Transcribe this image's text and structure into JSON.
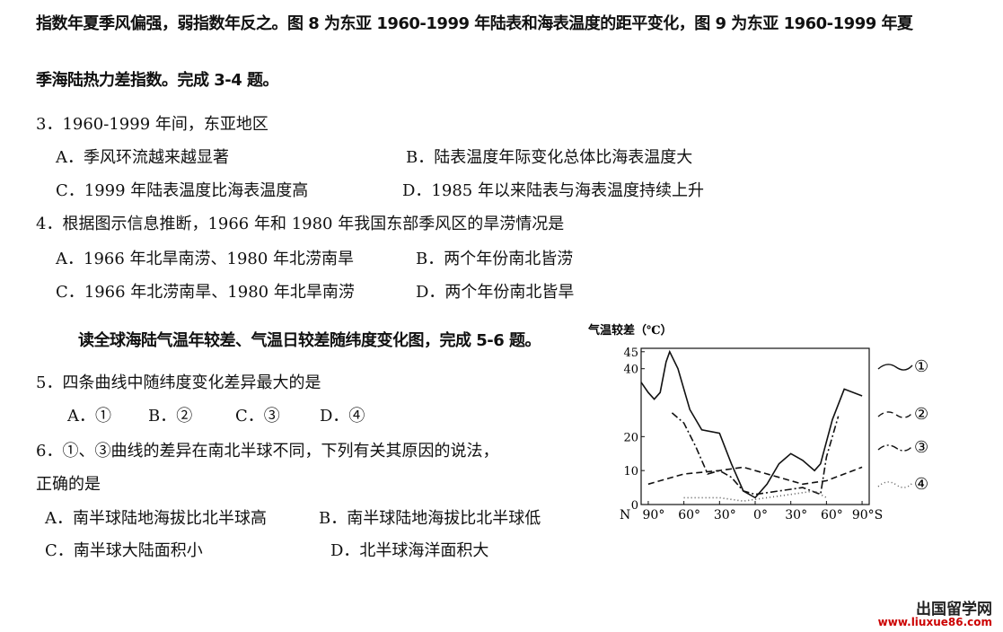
{
  "passage": [
    "指数年夏季风偏强，弱指数年反之。图 8 为东亚 1960-1999 年陆表和海表温度的距平变化，图 9 为东亚 1960-1999 年夏",
    "季海陆热力差指数。完成 3-4 题。"
  ],
  "questions_a": [
    {
      "stem": [
        "3．1960-1999 年间，东亚地区"
      ],
      "options": [
        "A．季风环流越来越显著",
        "B．陆表温度年际变化总体比海表温度大",
        "C．1999 年陆表温度比海表温度高",
        "D．1985 年以来陆表与海表温度持续上升"
      ]
    },
    {
      "stem": [
        "4．根据图示信息推断，1966 年和 1980 年我国东部季风区的旱涝情况是"
      ],
      "options": [
        "A．1966 年北旱南涝、1980 年北涝南旱",
        "B．两个年份南北皆涝",
        "C．1966 年北涝南旱、1980 年北旱南涝",
        "D．两个年份南北皆旱"
      ]
    }
  ],
  "intro": "读全球海陆气温年较差、气温日较差随纬度变化图，完成 5-6 题。",
  "questions_b": [
    {
      "stem": [
        "5．四条曲线中随纬度变化差异最大的是"
      ],
      "options": [
        "A．①",
        "B．②",
        "C．③",
        "D．④"
      ]
    },
    {
      "stem": [
        "6．①、③曲线的差异在南北半球不同，下列有关其原因的说法，",
        "正确的是"
      ],
      "options": [
        "A．南半球陆地海拔比北半球高",
        "B．南半球陆地海拔比北半球低",
        "C．南半球大陆面积小",
        "D．北半球海洋面积大"
      ]
    }
  ],
  "watermark": {
    "title": "出国留学网",
    "url": "www.liuxue86.com"
  },
  "chart_data": {
    "type": "line",
    "y_label": "气温较差（℃）",
    "x_start_label": "N",
    "xlim": [
      -96,
      96
    ],
    "ylim": [
      0,
      46
    ],
    "xticks": [
      {
        "value": -90,
        "label": "90°"
      },
      {
        "value": -60,
        "label": "60°"
      },
      {
        "value": -30,
        "label": "30°"
      },
      {
        "value": 0,
        "label": "0°"
      },
      {
        "value": 30,
        "label": "30°"
      },
      {
        "value": 60,
        "label": "60°"
      },
      {
        "value": 90,
        "label": "90°S"
      }
    ],
    "yticks": [
      0,
      10,
      20,
      40,
      45
    ],
    "series": [
      {
        "name": "①",
        "color": "#111",
        "dash": "",
        "x": [
          -96,
          -90,
          -85,
          -80,
          -75,
          -72,
          -65,
          -55,
          -45,
          -30,
          -20,
          -10,
          0,
          10,
          20,
          30,
          40,
          50,
          55,
          65,
          75,
          90
        ],
        "values": [
          36,
          33,
          31,
          33,
          42,
          45,
          40,
          28,
          22,
          21,
          12,
          4,
          2,
          6,
          12,
          15,
          13,
          10,
          12,
          25,
          34,
          32
        ]
      },
      {
        "name": "②",
        "color": "#111",
        "dash": "7 4",
        "x": [
          -90,
          -60,
          -30,
          -10,
          0,
          20,
          40,
          60,
          90
        ],
        "values": [
          6,
          9,
          10,
          11,
          10,
          8,
          6,
          7,
          11
        ]
      },
      {
        "name": "③",
        "color": "#111",
        "dash": "8 3 2 3",
        "x": [
          -70,
          -60,
          -50,
          -40,
          -30,
          -20,
          -10,
          0,
          20,
          40,
          55,
          60,
          70
        ],
        "values": [
          27,
          24,
          17,
          9,
          10,
          8,
          4,
          3,
          4,
          5,
          3,
          14,
          26
        ]
      },
      {
        "name": "④",
        "color": "#555",
        "dash": "1 3",
        "x": [
          -60,
          -30,
          -10,
          10,
          30,
          50,
          60
        ],
        "values": [
          2,
          2,
          1,
          2,
          3,
          4,
          2
        ]
      }
    ]
  }
}
